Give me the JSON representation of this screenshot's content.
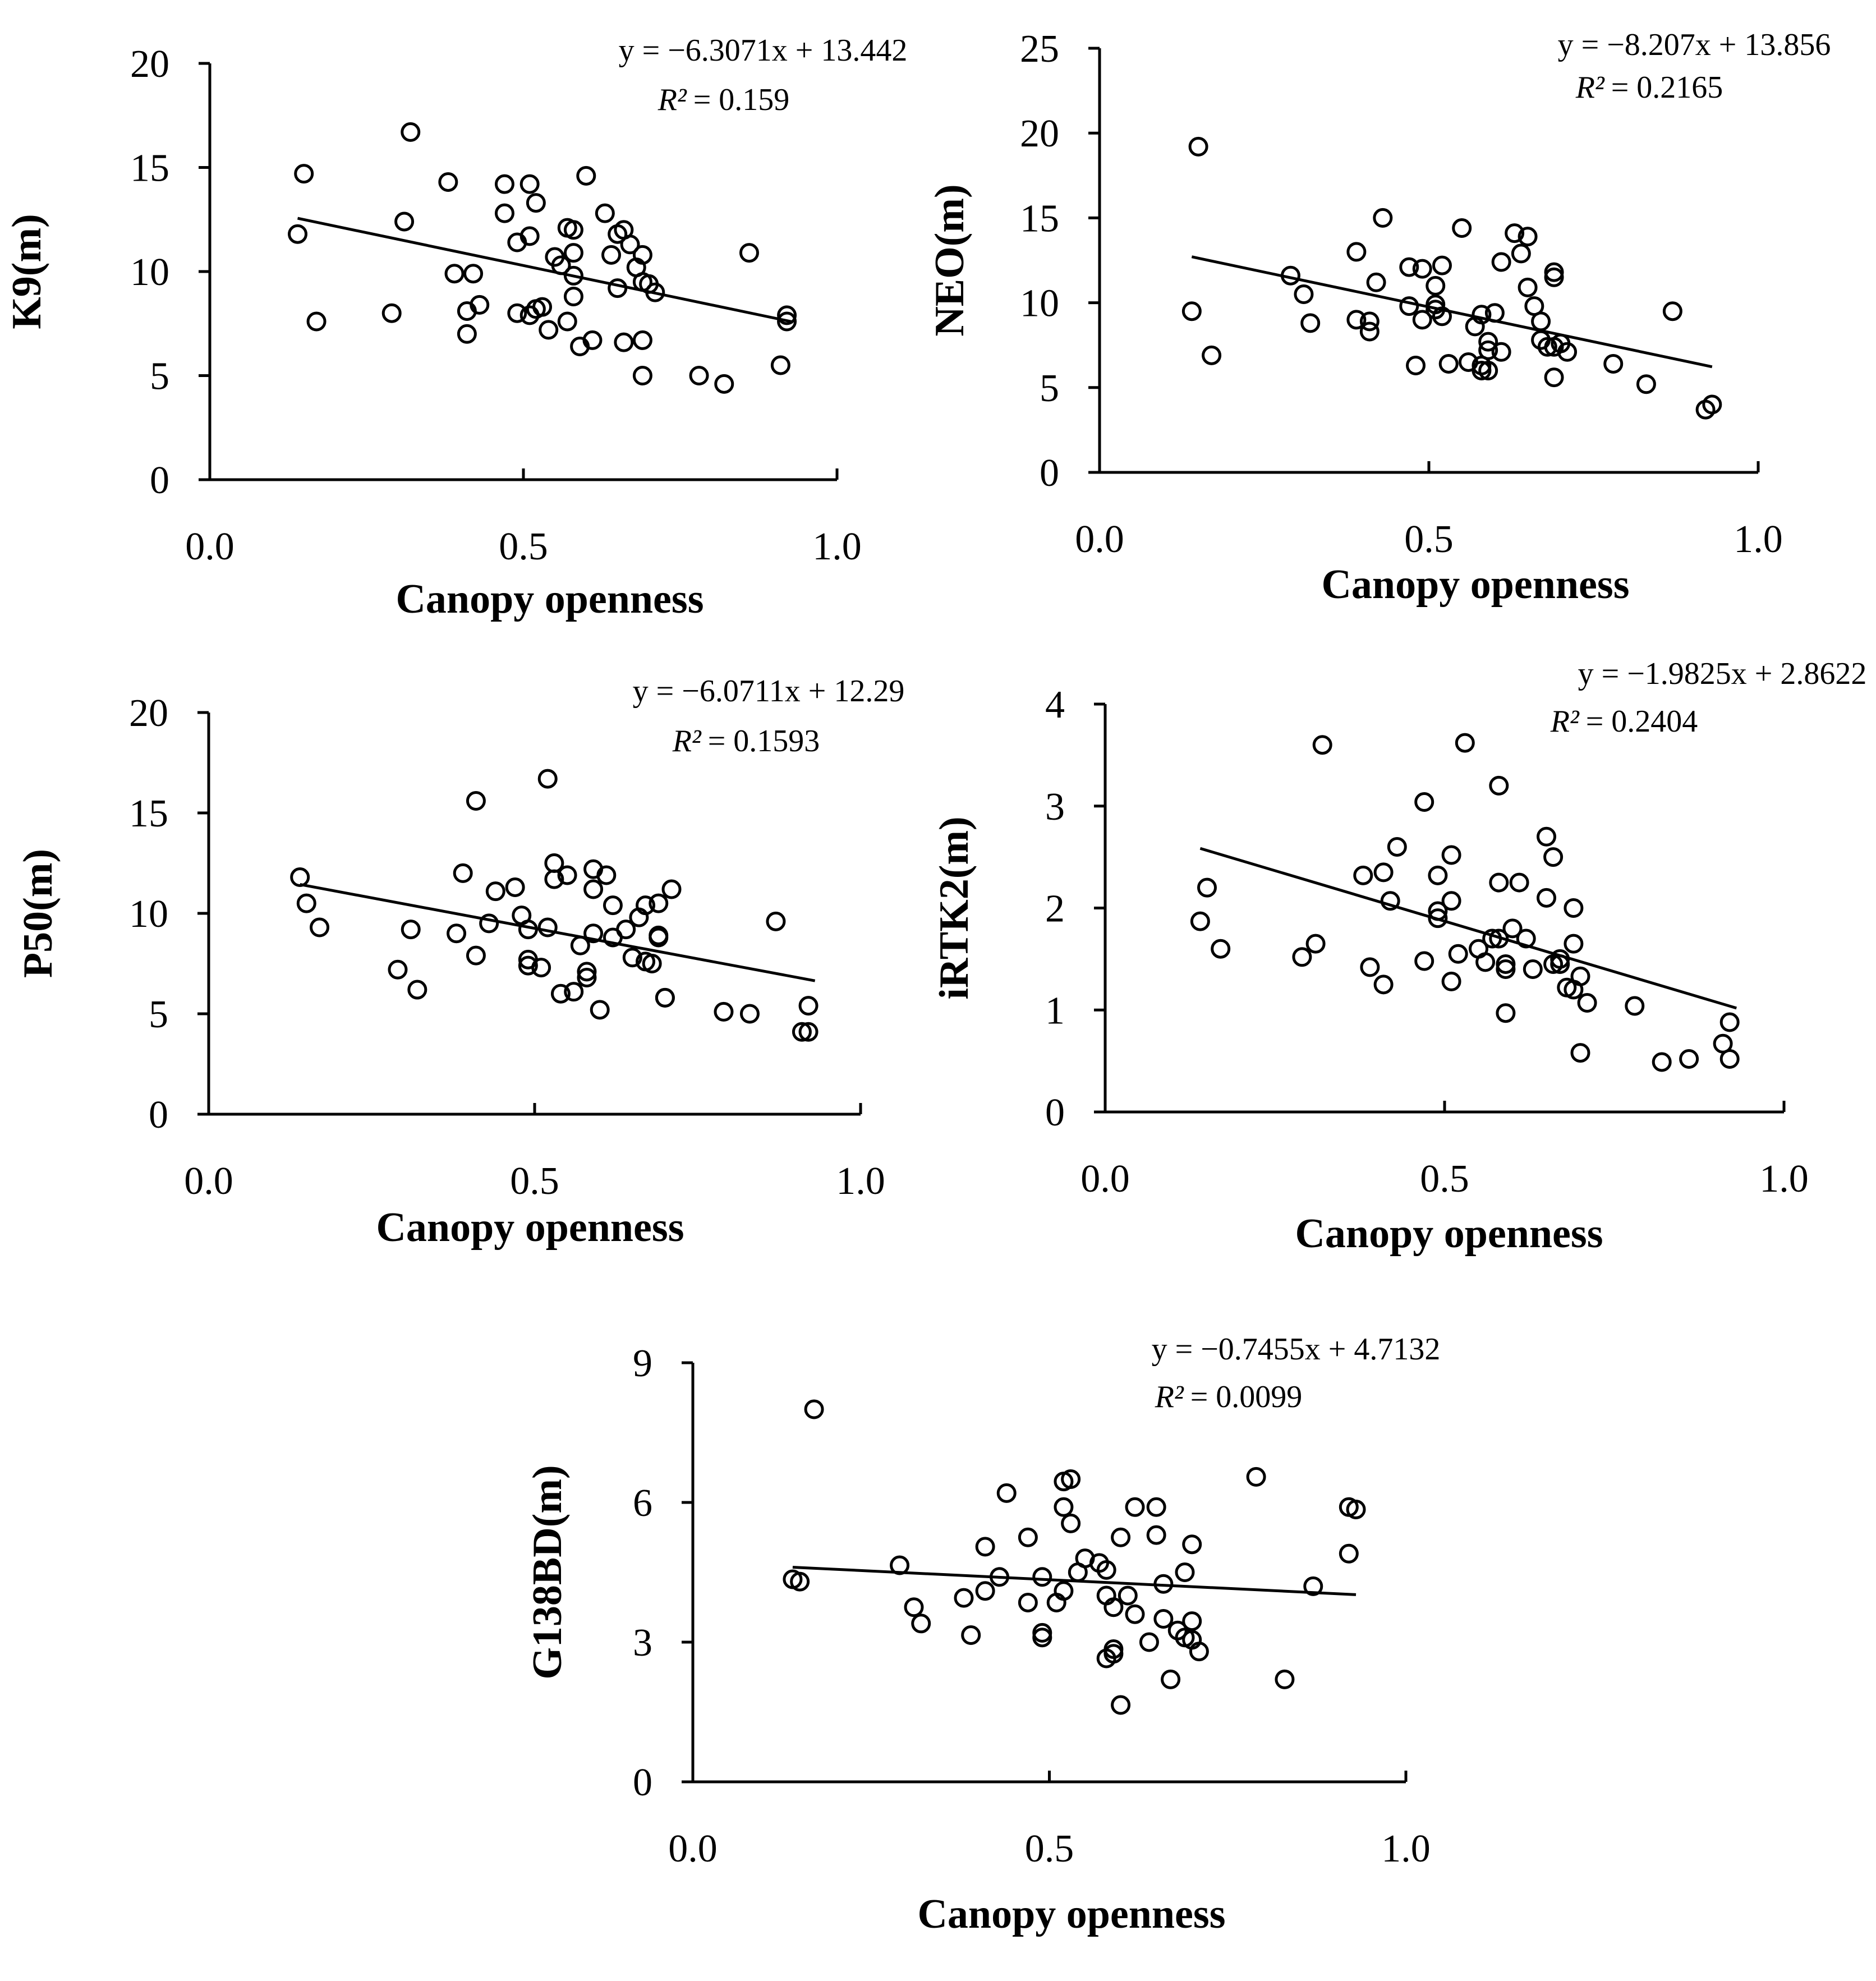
{
  "chart_data": [
    {
      "type": "scatter",
      "id": "k9",
      "xlabel": "Canopy openness",
      "ylabel": "K9(m)",
      "xlim": [
        0,
        1
      ],
      "ylim": [
        0,
        20
      ],
      "xticks": [
        "0.0",
        "0.5",
        "1.0"
      ],
      "yticks": [
        "0",
        "5",
        "10",
        "15",
        "20"
      ],
      "equation": "y = −6.3071x + 13.442",
      "r2_label": "R²",
      "r2_value": "= 0.159",
      "trend": {
        "slope": -6.3071,
        "intercept": 13.442,
        "x_range": [
          0.14,
          0.93
        ]
      },
      "points": [
        [
          0.14,
          11.8
        ],
        [
          0.15,
          14.7
        ],
        [
          0.17,
          7.6
        ],
        [
          0.29,
          8.0
        ],
        [
          0.31,
          12.4
        ],
        [
          0.32,
          16.7
        ],
        [
          0.38,
          14.3
        ],
        [
          0.39,
          9.9
        ],
        [
          0.41,
          8.1
        ],
        [
          0.41,
          7.0
        ],
        [
          0.42,
          9.9
        ],
        [
          0.43,
          8.4
        ],
        [
          0.47,
          12.8
        ],
        [
          0.47,
          14.2
        ],
        [
          0.49,
          11.4
        ],
        [
          0.49,
          8.0
        ],
        [
          0.51,
          11.7
        ],
        [
          0.51,
          14.2
        ],
        [
          0.51,
          7.9
        ],
        [
          0.52,
          13.3
        ],
        [
          0.52,
          8.2
        ],
        [
          0.53,
          8.3
        ],
        [
          0.54,
          7.2
        ],
        [
          0.55,
          10.7
        ],
        [
          0.56,
          10.3
        ],
        [
          0.57,
          12.1
        ],
        [
          0.57,
          7.6
        ],
        [
          0.58,
          12.0
        ],
        [
          0.58,
          9.8
        ],
        [
          0.58,
          10.9
        ],
        [
          0.58,
          8.8
        ],
        [
          0.59,
          6.4
        ],
        [
          0.6,
          14.6
        ],
        [
          0.61,
          6.7
        ],
        [
          0.63,
          12.8
        ],
        [
          0.64,
          10.8
        ],
        [
          0.65,
          9.2
        ],
        [
          0.65,
          11.8
        ],
        [
          0.66,
          12.0
        ],
        [
          0.66,
          6.6
        ],
        [
          0.67,
          11.3
        ],
        [
          0.68,
          10.2
        ],
        [
          0.69,
          10.8
        ],
        [
          0.69,
          9.5
        ],
        [
          0.69,
          6.7
        ],
        [
          0.69,
          5.0
        ],
        [
          0.7,
          9.4
        ],
        [
          0.71,
          9.0
        ],
        [
          0.78,
          5.0
        ],
        [
          0.82,
          4.6
        ],
        [
          0.86,
          10.9
        ],
        [
          0.91,
          5.5
        ],
        [
          0.92,
          7.9
        ],
        [
          0.92,
          7.6
        ]
      ]
    },
    {
      "type": "scatter",
      "id": "neo",
      "xlabel": "Canopy openness",
      "ylabel": "NEO(m)",
      "xlim": [
        0,
        1
      ],
      "ylim": [
        0,
        25
      ],
      "xticks": [
        "0.0",
        "0.5",
        "1.0"
      ],
      "yticks": [
        "0",
        "5",
        "10",
        "15",
        "20",
        "25"
      ],
      "equation": "y = −8.207x + 13.856",
      "r2_label": "R²",
      "r2_value": "= 0.2165",
      "trend": {
        "slope": -8.207,
        "intercept": 13.856,
        "x_range": [
          0.14,
          0.93
        ]
      },
      "points": [
        [
          0.14,
          9.5
        ],
        [
          0.15,
          19.2
        ],
        [
          0.17,
          6.9
        ],
        [
          0.29,
          11.6
        ],
        [
          0.31,
          10.5
        ],
        [
          0.32,
          8.8
        ],
        [
          0.39,
          13.0
        ],
        [
          0.39,
          9.0
        ],
        [
          0.41,
          8.9
        ],
        [
          0.41,
          8.3
        ],
        [
          0.42,
          11.2
        ],
        [
          0.43,
          15.0
        ],
        [
          0.47,
          12.1
        ],
        [
          0.47,
          9.8
        ],
        [
          0.48,
          6.3
        ],
        [
          0.49,
          12.0
        ],
        [
          0.49,
          9.0
        ],
        [
          0.51,
          9.9
        ],
        [
          0.51,
          11.0
        ],
        [
          0.51,
          9.6
        ],
        [
          0.52,
          9.2
        ],
        [
          0.52,
          12.2
        ],
        [
          0.53,
          6.4
        ],
        [
          0.55,
          14.4
        ],
        [
          0.56,
          6.5
        ],
        [
          0.57,
          8.6
        ],
        [
          0.58,
          6.3
        ],
        [
          0.58,
          6.0
        ],
        [
          0.58,
          9.3
        ],
        [
          0.59,
          7.7
        ],
        [
          0.59,
          7.2
        ],
        [
          0.59,
          6.0
        ],
        [
          0.6,
          9.4
        ],
        [
          0.61,
          12.4
        ],
        [
          0.61,
          7.1
        ],
        [
          0.63,
          14.1
        ],
        [
          0.64,
          12.9
        ],
        [
          0.65,
          13.9
        ],
        [
          0.65,
          10.9
        ],
        [
          0.66,
          9.8
        ],
        [
          0.67,
          8.9
        ],
        [
          0.67,
          7.8
        ],
        [
          0.68,
          7.4
        ],
        [
          0.69,
          11.8
        ],
        [
          0.69,
          11.5
        ],
        [
          0.69,
          7.4
        ],
        [
          0.69,
          5.6
        ],
        [
          0.7,
          7.6
        ],
        [
          0.71,
          7.1
        ],
        [
          0.78,
          6.4
        ],
        [
          0.83,
          5.2
        ],
        [
          0.87,
          9.5
        ],
        [
          0.92,
          3.7
        ],
        [
          0.93,
          4.0
        ]
      ]
    },
    {
      "type": "scatter",
      "id": "p50",
      "xlabel": "Canopy openness",
      "ylabel": "P50(m)",
      "xlim": [
        0,
        1
      ],
      "ylim": [
        0,
        20
      ],
      "xticks": [
        "0.0",
        "0.5",
        "1.0"
      ],
      "yticks": [
        "0",
        "5",
        "10",
        "15",
        "20"
      ],
      "equation": "y = −6.0711x + 12.29",
      "r2_label": "R²",
      "r2_value": "= 0.1593",
      "trend": {
        "slope": -6.0711,
        "intercept": 12.29,
        "x_range": [
          0.14,
          0.93
        ]
      },
      "points": [
        [
          0.14,
          11.8
        ],
        [
          0.15,
          10.5
        ],
        [
          0.17,
          9.3
        ],
        [
          0.29,
          7.2
        ],
        [
          0.31,
          9.2
        ],
        [
          0.32,
          6.2
        ],
        [
          0.38,
          9.0
        ],
        [
          0.39,
          12.0
        ],
        [
          0.41,
          15.6
        ],
        [
          0.41,
          7.9
        ],
        [
          0.43,
          9.5
        ],
        [
          0.44,
          11.1
        ],
        [
          0.47,
          11.3
        ],
        [
          0.48,
          9.9
        ],
        [
          0.49,
          9.2
        ],
        [
          0.49,
          7.7
        ],
        [
          0.49,
          7.4
        ],
        [
          0.51,
          7.3
        ],
        [
          0.52,
          16.7
        ],
        [
          0.52,
          9.3
        ],
        [
          0.53,
          12.5
        ],
        [
          0.53,
          11.7
        ],
        [
          0.54,
          6.0
        ],
        [
          0.55,
          11.9
        ],
        [
          0.56,
          6.1
        ],
        [
          0.57,
          8.4
        ],
        [
          0.58,
          6.8
        ],
        [
          0.58,
          7.1
        ],
        [
          0.59,
          12.2
        ],
        [
          0.59,
          11.2
        ],
        [
          0.59,
          9.0
        ],
        [
          0.6,
          5.2
        ],
        [
          0.61,
          11.9
        ],
        [
          0.62,
          10.4
        ],
        [
          0.62,
          8.8
        ],
        [
          0.64,
          9.2
        ],
        [
          0.65,
          7.8
        ],
        [
          0.66,
          9.8
        ],
        [
          0.67,
          10.4
        ],
        [
          0.67,
          7.6
        ],
        [
          0.68,
          7.5
        ],
        [
          0.69,
          10.5
        ],
        [
          0.69,
          8.9
        ],
        [
          0.69,
          8.8
        ],
        [
          0.7,
          5.8
        ],
        [
          0.7,
          5.8
        ],
        [
          0.71,
          11.2
        ],
        [
          0.79,
          5.1
        ],
        [
          0.83,
          5.0
        ],
        [
          0.87,
          9.6
        ],
        [
          0.91,
          4.1
        ],
        [
          0.92,
          5.4
        ],
        [
          0.92,
          4.1
        ]
      ]
    },
    {
      "type": "scatter",
      "id": "irtk2",
      "xlabel": "Canopy openness",
      "ylabel": "iRTK2(m)",
      "xlim": [
        0,
        1
      ],
      "ylim": [
        0,
        4
      ],
      "xticks": [
        "0.0",
        "0.5",
        "1.0"
      ],
      "yticks": [
        "0",
        "1",
        "2",
        "3",
        "4"
      ],
      "equation": "y = −1.9825x + 2.8622",
      "r2_label": "R²",
      "r2_value": "= 0.2404",
      "trend": {
        "slope": -1.9825,
        "intercept": 2.8622,
        "x_range": [
          0.14,
          0.93
        ]
      },
      "points": [
        [
          0.14,
          1.87
        ],
        [
          0.15,
          2.2
        ],
        [
          0.17,
          1.6
        ],
        [
          0.29,
          1.52
        ],
        [
          0.31,
          1.65
        ],
        [
          0.32,
          3.6
        ],
        [
          0.38,
          2.32
        ],
        [
          0.39,
          1.42
        ],
        [
          0.41,
          1.25
        ],
        [
          0.41,
          2.35
        ],
        [
          0.42,
          2.07
        ],
        [
          0.43,
          2.6
        ],
        [
          0.47,
          3.04
        ],
        [
          0.47,
          1.48
        ],
        [
          0.49,
          1.97
        ],
        [
          0.49,
          2.32
        ],
        [
          0.49,
          1.9
        ],
        [
          0.51,
          1.28
        ],
        [
          0.51,
          2.52
        ],
        [
          0.51,
          2.07
        ],
        [
          0.52,
          1.55
        ],
        [
          0.53,
          3.62
        ],
        [
          0.55,
          1.6
        ],
        [
          0.56,
          1.47
        ],
        [
          0.57,
          1.7
        ],
        [
          0.58,
          3.2
        ],
        [
          0.58,
          2.25
        ],
        [
          0.58,
          1.7
        ],
        [
          0.59,
          1.4
        ],
        [
          0.59,
          0.97
        ],
        [
          0.59,
          1.45
        ],
        [
          0.6,
          1.8
        ],
        [
          0.61,
          2.25
        ],
        [
          0.62,
          1.7
        ],
        [
          0.63,
          1.4
        ],
        [
          0.65,
          2.7
        ],
        [
          0.65,
          2.1
        ],
        [
          0.66,
          1.45
        ],
        [
          0.66,
          2.5
        ],
        [
          0.67,
          1.5
        ],
        [
          0.67,
          1.45
        ],
        [
          0.68,
          1.22
        ],
        [
          0.69,
          1.2
        ],
        [
          0.69,
          1.65
        ],
        [
          0.69,
          2.0
        ],
        [
          0.7,
          0.58
        ],
        [
          0.7,
          1.33
        ],
        [
          0.71,
          1.07
        ],
        [
          0.78,
          1.04
        ],
        [
          0.82,
          0.49
        ],
        [
          0.86,
          0.52
        ],
        [
          0.91,
          0.67
        ],
        [
          0.92,
          0.88
        ],
        [
          0.92,
          0.52
        ]
      ]
    },
    {
      "type": "scatter",
      "id": "g138bd",
      "xlabel": "Canopy openness",
      "ylabel": "G138BD(m)",
      "xlim": [
        0,
        1
      ],
      "ylim": [
        0,
        9
      ],
      "xticks": [
        "0.0",
        "0.5",
        "1.0"
      ],
      "yticks": [
        "0",
        "3",
        "6",
        "9"
      ],
      "equation": "y = −0.7455x + 4.7132",
      "r2_label": "R²",
      "r2_value": "= 0.0099",
      "trend": {
        "slope": -0.7455,
        "intercept": 4.7132,
        "x_range": [
          0.14,
          0.93
        ]
      },
      "points": [
        [
          0.14,
          4.35
        ],
        [
          0.15,
          4.3
        ],
        [
          0.17,
          8.0
        ],
        [
          0.29,
          4.65
        ],
        [
          0.31,
          3.75
        ],
        [
          0.32,
          3.4
        ],
        [
          0.38,
          3.95
        ],
        [
          0.39,
          3.15
        ],
        [
          0.41,
          5.05
        ],
        [
          0.41,
          4.1
        ],
        [
          0.43,
          4.4
        ],
        [
          0.44,
          6.2
        ],
        [
          0.47,
          3.85
        ],
        [
          0.47,
          5.25
        ],
        [
          0.49,
          4.4
        ],
        [
          0.49,
          3.2
        ],
        [
          0.49,
          3.1
        ],
        [
          0.51,
          3.85
        ],
        [
          0.52,
          5.9
        ],
        [
          0.52,
          4.1
        ],
        [
          0.52,
          6.45
        ],
        [
          0.53,
          6.5
        ],
        [
          0.53,
          5.55
        ],
        [
          0.54,
          4.5
        ],
        [
          0.55,
          4.8
        ],
        [
          0.57,
          4.7
        ],
        [
          0.58,
          2.65
        ],
        [
          0.58,
          4.55
        ],
        [
          0.58,
          4.0
        ],
        [
          0.59,
          3.75
        ],
        [
          0.59,
          2.85
        ],
        [
          0.59,
          2.75
        ],
        [
          0.6,
          1.65
        ],
        [
          0.6,
          5.25
        ],
        [
          0.61,
          4.0
        ],
        [
          0.62,
          5.9
        ],
        [
          0.62,
          3.6
        ],
        [
          0.64,
          3.0
        ],
        [
          0.65,
          5.9
        ],
        [
          0.65,
          5.3
        ],
        [
          0.66,
          3.5
        ],
        [
          0.66,
          4.25
        ],
        [
          0.67,
          2.2
        ],
        [
          0.68,
          3.25
        ],
        [
          0.69,
          4.5
        ],
        [
          0.69,
          3.1
        ],
        [
          0.7,
          3.05
        ],
        [
          0.7,
          3.45
        ],
        [
          0.7,
          5.1
        ],
        [
          0.71,
          2.8
        ],
        [
          0.79,
          6.55
        ],
        [
          0.83,
          2.2
        ],
        [
          0.87,
          4.2
        ],
        [
          0.92,
          5.9
        ],
        [
          0.92,
          4.9
        ],
        [
          0.93,
          5.85
        ]
      ]
    }
  ]
}
